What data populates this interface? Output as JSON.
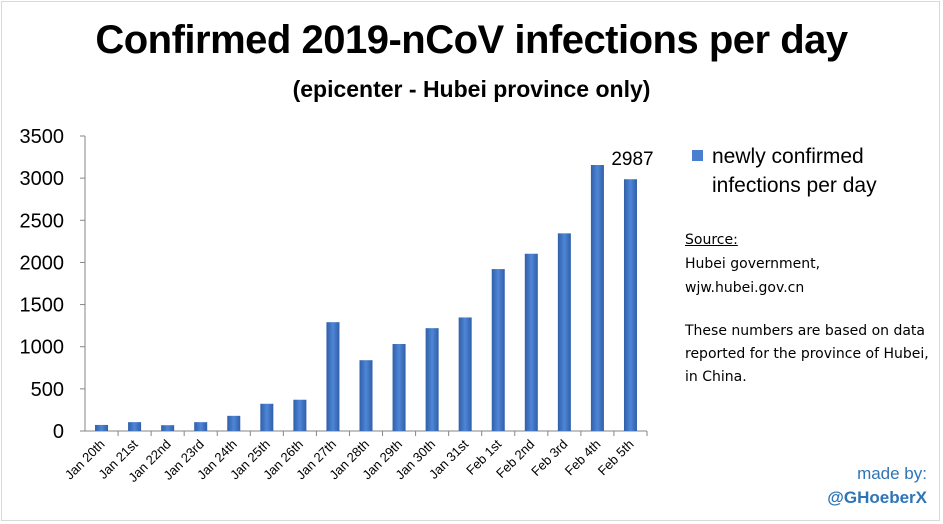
{
  "chart_data": {
    "type": "bar",
    "title": "Confirmed 2019-nCoV infections per day",
    "subtitle": "(epicenter - Hubei province only)",
    "categories": [
      "Jan 20th",
      "Jan 21st",
      "Jan 22nd",
      "Jan 23rd",
      "Jan 24th",
      "Jan 25th",
      "Jan 26th",
      "Jan 27th",
      "Jan 28th",
      "Jan 29th",
      "Jan 30th",
      "Jan 31st",
      "Feb 1st",
      "Feb 2nd",
      "Feb 3rd",
      "Feb 4th",
      "Feb 5th"
    ],
    "series": [
      {
        "name": "newly confirmed infections per day",
        "values": [
          72,
          105,
          69,
          105,
          180,
          323,
          371,
          1291,
          840,
          1032,
          1220,
          1347,
          1921,
          2103,
          2345,
          3156,
          2987
        ]
      }
    ],
    "ylim": [
      0,
      3500
    ],
    "yticks": [
      "0",
      "500",
      "1000",
      "1500",
      "2000",
      "2500",
      "3000",
      "3500"
    ],
    "data_labels": [
      {
        "index": 16,
        "text": "2987"
      }
    ],
    "legend": "right",
    "grid": false,
    "bar_color": "#4a7fd0"
  },
  "legend": {
    "label": "newly confirmed infections per day"
  },
  "source": {
    "heading": "Source:",
    "line1": "Hubei government,",
    "line2": "wjw.hubei.gov.cn"
  },
  "note": {
    "text": "These numbers are based on data reported for the province of Hubei, in China."
  },
  "credit": {
    "made_by": "made by:",
    "handle": "@GHoeberX",
    "color": "#2e75b6"
  }
}
